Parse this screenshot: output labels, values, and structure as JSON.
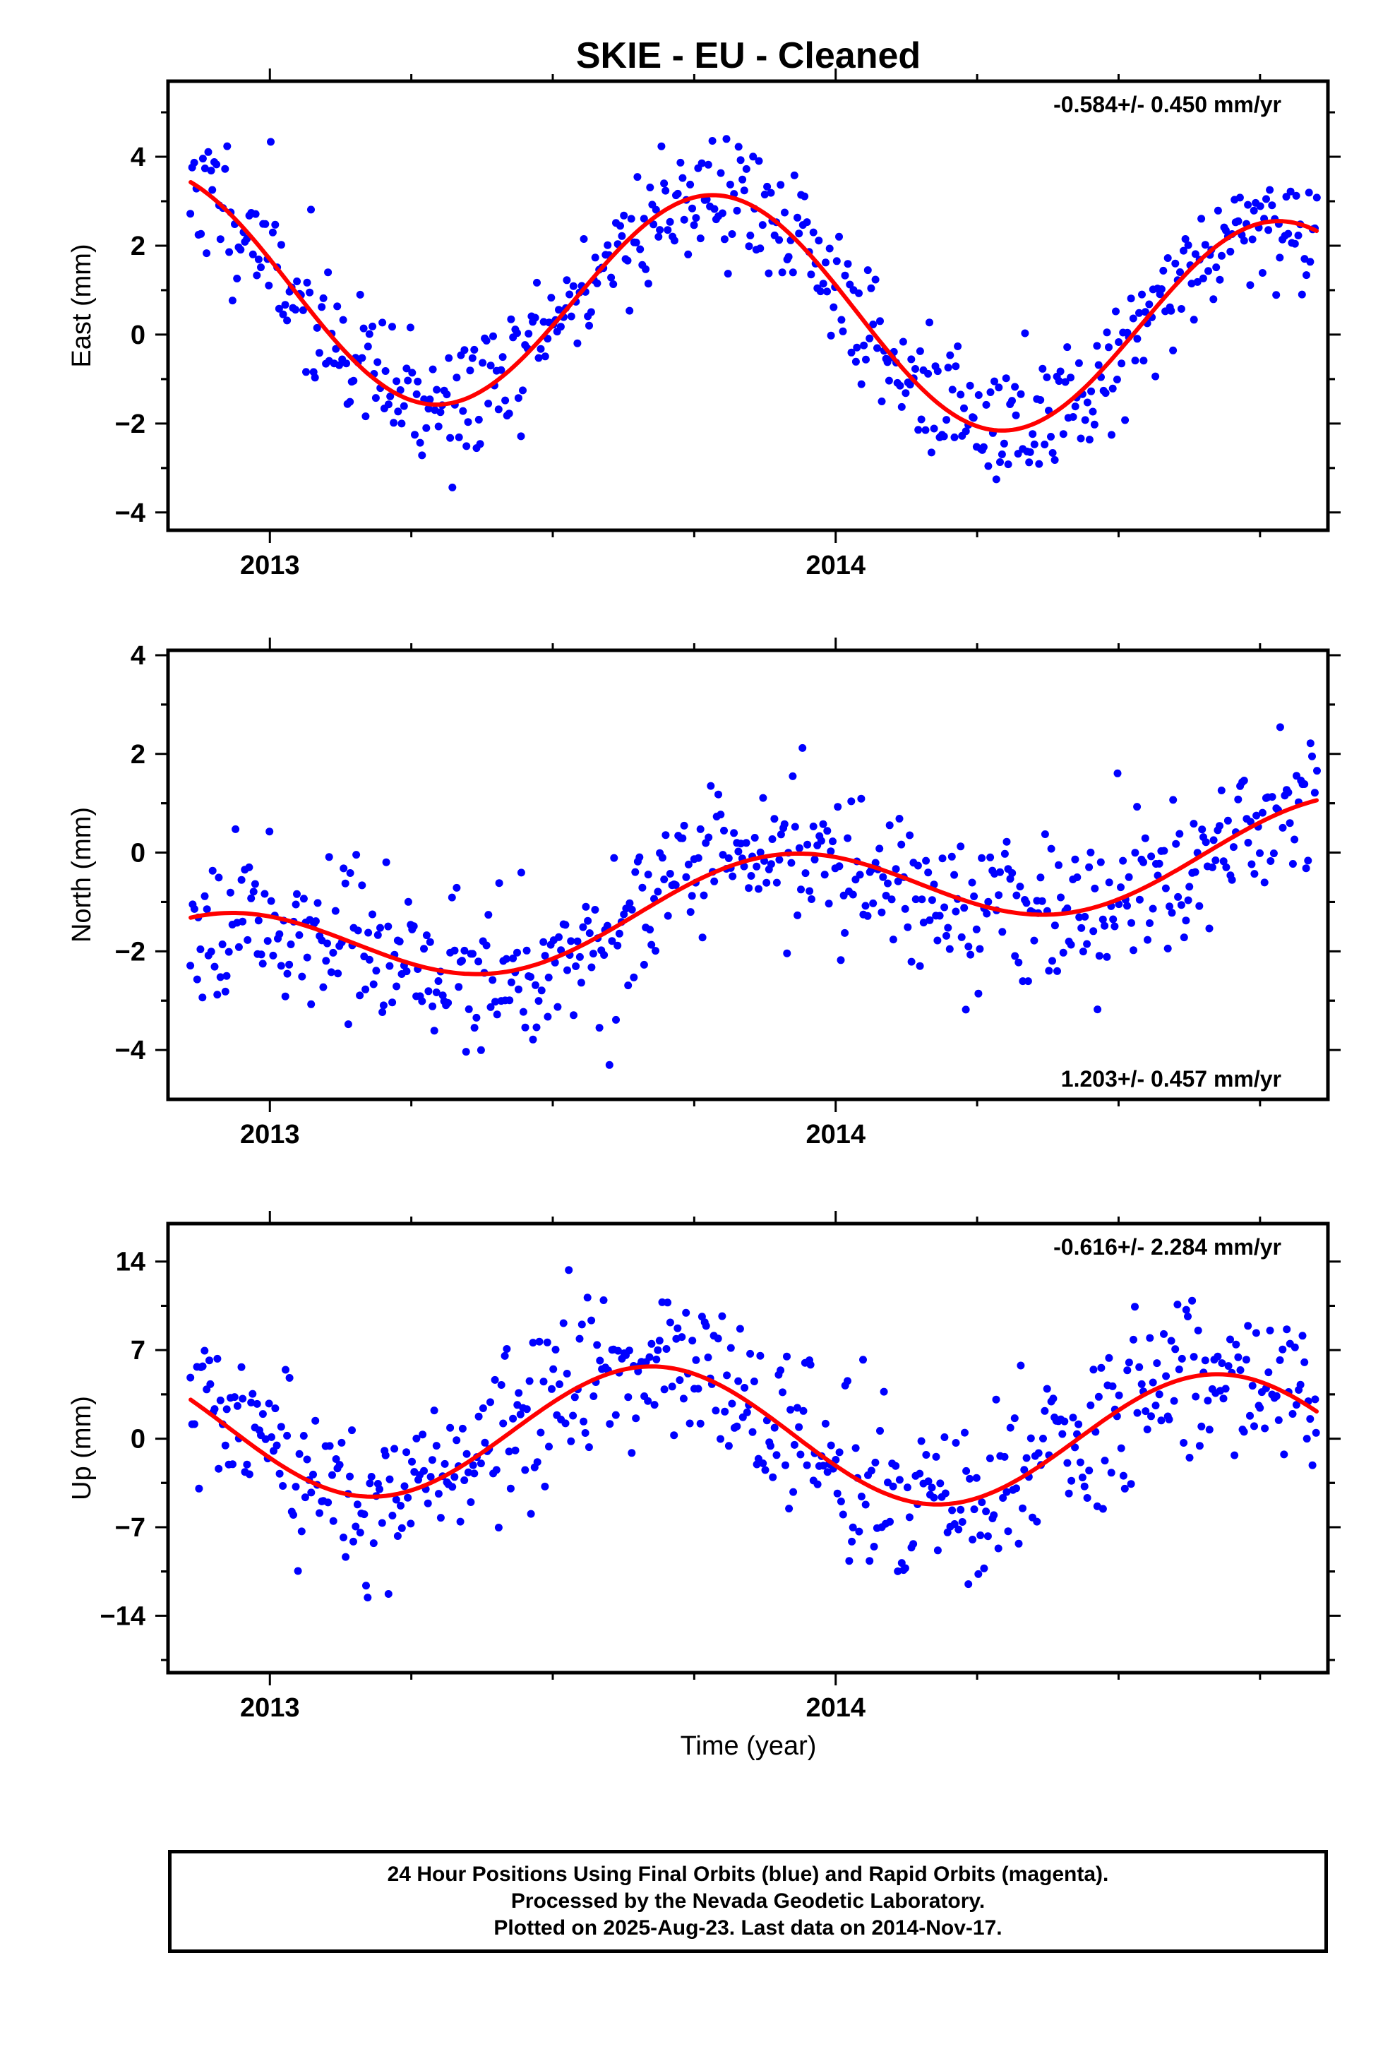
{
  "figure": {
    "title": "SKIE  - EU - Cleaned",
    "xlabel": "Time (year)",
    "footer_lines": [
      "24 Hour Positions Using Final Orbits (blue) and Rapid Orbits (magenta).",
      "Processed by the Nevada Geodetic Laboratory.",
      "Plotted on 2025-Aug-23. Last data on 2014-Nov-17."
    ]
  },
  "colors": {
    "points": "#0000ff",
    "fit": "#ff0000",
    "frame": "#000000"
  },
  "chart_data": [
    {
      "type": "scatter",
      "ylabel": "East (mm)",
      "xlim": [
        2012.82,
        2014.87
      ],
      "ylim": [
        -4.4,
        5.7
      ],
      "yticks": [
        -4,
        -2,
        0,
        2,
        4
      ],
      "xticks": [
        2013,
        2014
      ],
      "rate_label": "-0.584+/- 0.450 mm/yr",
      "rate_label_position": "top-right",
      "series": [
        {
          "kind": "points",
          "x_start": 2012.86,
          "x_end": 2014.85,
          "n": 560,
          "seed": 11,
          "amp": 2.5,
          "phase": 2.9,
          "slope": -0.584,
          "offset": 0.6,
          "noise": 0.75
        },
        {
          "kind": "fit",
          "x_start": 2012.86,
          "x_end": 2014.85,
          "amp": 2.5,
          "phase": 2.9,
          "slope": -0.584,
          "offset": 0.6
        }
      ]
    },
    {
      "type": "scatter",
      "ylabel": "North (mm)",
      "xlim": [
        2012.82,
        2014.87
      ],
      "ylim": [
        -5.0,
        4.1
      ],
      "yticks": [
        -4,
        -2,
        0,
        2,
        4
      ],
      "xticks": [
        2013,
        2014
      ],
      "rate_label": "1.203+/- 0.457 mm/yr",
      "rate_label_position": "bottom-right",
      "series": [
        {
          "kind": "points",
          "x_start": 2012.86,
          "x_end": 2014.85,
          "n": 560,
          "seed": 23,
          "amp": 0.9,
          "phase": 2.2,
          "slope": 1.203,
          "offset": -1.0,
          "noise": 0.75
        },
        {
          "kind": "fit",
          "x_start": 2012.86,
          "x_end": 2014.85,
          "amp": 0.9,
          "phase": 2.2,
          "slope": 1.203,
          "offset": -1.0
        }
      ]
    },
    {
      "type": "scatter",
      "ylabel": "Up (mm)",
      "xlim": [
        2012.82,
        2014.87
      ],
      "ylim": [
        -18.5,
        17.0
      ],
      "yticks": [
        -14,
        -7,
        0,
        7,
        14
      ],
      "xticks": [
        2013,
        2014
      ],
      "rate_label": "-0.616+/- 2.284 mm/yr",
      "rate_label_position": "top-right",
      "series": [
        {
          "kind": "points",
          "x_start": 2012.86,
          "x_end": 2014.85,
          "n": 560,
          "seed": 37,
          "amp": 5.3,
          "phase": 3.6,
          "slope": -0.616,
          "offset": 0.3,
          "noise": 3.2
        },
        {
          "kind": "fit",
          "x_start": 2012.86,
          "x_end": 2014.85,
          "amp": 5.3,
          "phase": 3.6,
          "slope": -0.616,
          "offset": 0.3
        }
      ]
    }
  ]
}
